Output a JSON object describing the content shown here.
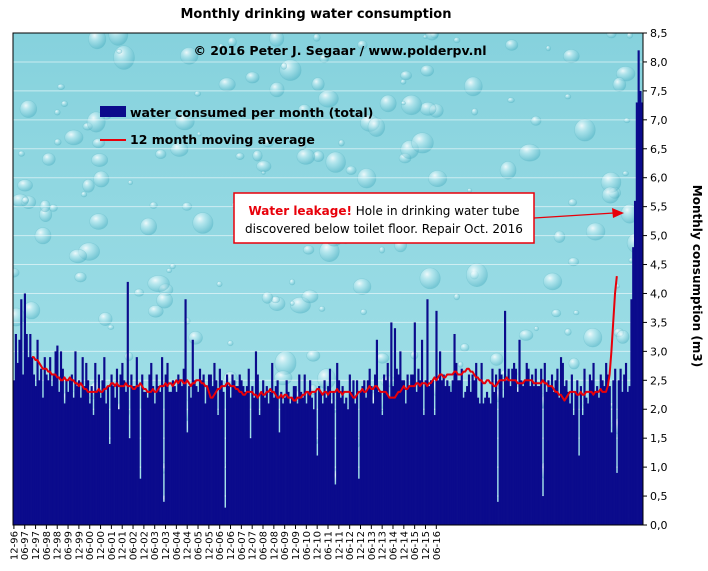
{
  "chart_data": {
    "type": "bar",
    "title": "Monthly drinking  water consumption",
    "subtitle": "© 2016  Peter J. Segaar  /  www.polderpv.nl",
    "ylabel": "Monthly consumption (m3)",
    "xlabel": "",
    "ylim": [
      0,
      8.5
    ],
    "y_ticks": [
      "0,0",
      "0,5",
      "1,0",
      "1,5",
      "2,0",
      "2,5",
      "3,0",
      "3,5",
      "4,0",
      "4,5",
      "5,0",
      "5,5",
      "6,0",
      "6,5",
      "7,0",
      "7,5",
      "8,0",
      "8,5"
    ],
    "x_ticks": [
      "12-96",
      "06-97",
      "12-97",
      "06-98",
      "12-98",
      "06-99",
      "12-99",
      "06-00",
      "12-00",
      "06-01",
      "12-01",
      "06-02",
      "12-02",
      "06-03",
      "12-03",
      "06-04",
      "12-04",
      "06-05",
      "12-05",
      "06-06",
      "12-06",
      "06-07",
      "12-07",
      "06-08",
      "12-08",
      "06-09",
      "12-09",
      "06-10",
      "12-10",
      "06-11",
      "12-11",
      "06-12",
      "12-12",
      "06-13",
      "12-13",
      "06-14",
      "12-14",
      "06-15",
      "12-15",
      "06-16"
    ],
    "grid": true,
    "legend_position": "top-left",
    "colors": {
      "bars": "#0b0b8c",
      "moving_average": "#e8000a",
      "background": "#8fd8e2"
    },
    "series": [
      {
        "name": "water consumed per month (total)",
        "type": "bar",
        "values": [
          2.5,
          3.3,
          2.8,
          3.2,
          3.9,
          2.6,
          4.0,
          3.3,
          2.9,
          3.3,
          2.9,
          2.6,
          2.4,
          3.2,
          2.5,
          2.7,
          2.2,
          2.9,
          2.6,
          2.5,
          2.9,
          2.4,
          2.6,
          3.0,
          3.1,
          2.3,
          3.0,
          2.7,
          2.1,
          2.5,
          2.3,
          2.5,
          2.6,
          2.2,
          3.0,
          2.4,
          2.5,
          2.2,
          2.9,
          2.4,
          2.8,
          2.5,
          2.1,
          2.4,
          1.9,
          2.8,
          2.3,
          2.6,
          2.2,
          2.5,
          2.9,
          2.1,
          2.4,
          1.4,
          2.6,
          2.4,
          2.2,
          2.7,
          2.0,
          2.6,
          2.8,
          2.5,
          2.3,
          4.2,
          1.5,
          2.6,
          2.4,
          2.4,
          2.9,
          2.4,
          0.8,
          2.6,
          2.3,
          2.3,
          2.2,
          2.6,
          2.8,
          2.4,
          2.1,
          2.6,
          2.4,
          2.3,
          2.9,
          0.4,
          2.6,
          2.8,
          2.3,
          2.3,
          2.5,
          2.4,
          2.3,
          2.6,
          2.5,
          2.4,
          2.7,
          3.9,
          1.6,
          2.4,
          2.2,
          3.2,
          2.5,
          2.4,
          2.3,
          2.7,
          2.5,
          2.6,
          2.1,
          2.4,
          2.6,
          2.6,
          2.4,
          2.8,
          2.5,
          1.9,
          2.7,
          2.5,
          2.3,
          0.3,
          2.6,
          2.4,
          2.2,
          2.6,
          2.5,
          2.4,
          2.4,
          2.6,
          2.5,
          2.4,
          2.3,
          2.4,
          2.7,
          1.5,
          2.4,
          2.2,
          3.0,
          2.6,
          1.9,
          2.3,
          2.5,
          2.2,
          2.4,
          2.1,
          2.3,
          2.8,
          2.2,
          2.4,
          2.5,
          1.6,
          2.3,
          2.1,
          2.2,
          2.5,
          2.3,
          2.1,
          2.2,
          2.4,
          2.4,
          2.1,
          2.6,
          2.3,
          2.2,
          2.6,
          2.1,
          2.3,
          2.5,
          2.2,
          2.0,
          2.3,
          1.2,
          2.4,
          2.3,
          2.1,
          2.5,
          2.2,
          2.4,
          2.7,
          2.1,
          2.3,
          0.7,
          2.8,
          2.5,
          2.2,
          2.4,
          2.1,
          2.2,
          2.0,
          2.6,
          2.3,
          2.5,
          2.1,
          2.5,
          0.8,
          2.3,
          2.4,
          2.5,
          2.2,
          2.5,
          2.7,
          2.4,
          2.1,
          2.6,
          3.2,
          2.3,
          2.3,
          1.9,
          2.6,
          2.5,
          2.8,
          2.2,
          3.5,
          2.4,
          3.4,
          2.7,
          2.6,
          3.0,
          2.5,
          2.5,
          2.1,
          2.6,
          2.4,
          2.6,
          2.6,
          3.5,
          2.3,
          2.7,
          2.5,
          3.2,
          1.9,
          2.5,
          3.9,
          2.4,
          2.5,
          2.5,
          1.9,
          3.7,
          2.5,
          3.0,
          2.5,
          2.6,
          2.4,
          2.5,
          2.4,
          2.3,
          2.5,
          3.3,
          2.8,
          2.5,
          2.5,
          2.7,
          2.2,
          2.3,
          2.4,
          2.6,
          2.3,
          2.6,
          2.5,
          2.8,
          2.2,
          2.1,
          2.8,
          2.1,
          2.2,
          2.3,
          2.2,
          2.1,
          2.7,
          2.3,
          2.6,
          0.4,
          2.7,
          2.6,
          2.2,
          3.7,
          2.5,
          2.7,
          2.4,
          2.7,
          2.8,
          2.7,
          2.3,
          3.2,
          2.5,
          2.4,
          2.5,
          2.8,
          2.7,
          2.4,
          2.6,
          2.4,
          2.7,
          2.4,
          2.4,
          2.7,
          0.5,
          2.8,
          2.3,
          2.5,
          2.4,
          2.6,
          2.3,
          2.5,
          2.7,
          2.2,
          2.9,
          2.8,
          2.4,
          2.5,
          2.3,
          2.1,
          2.6,
          1.9,
          2.3,
          2.5,
          1.2,
          2.4,
          1.9,
          2.7,
          2.2,
          2.1,
          2.6,
          2.5,
          2.8,
          2.3,
          2.4,
          2.2,
          2.6,
          2.5,
          2.4,
          2.8,
          2.6,
          2.4,
          1.6,
          2.5,
          2.7,
          0.9,
          2.5,
          2.7,
          2.3,
          2.6,
          2.8,
          2.3,
          2.4,
          3.9,
          4.8,
          5.6,
          7.3,
          8.2,
          7.5,
          7.3
        ]
      },
      {
        "name": "12 month moving average",
        "type": "line",
        "start_index": 10,
        "values": [
          2.9,
          2.9,
          2.85,
          2.85,
          2.8,
          2.75,
          2.7,
          2.7,
          2.7,
          2.65,
          2.65,
          2.6,
          2.6,
          2.6,
          2.55,
          2.55,
          2.5,
          2.5,
          2.55,
          2.5,
          2.5,
          2.55,
          2.5,
          2.5,
          2.45,
          2.45,
          2.4,
          2.45,
          2.4,
          2.35,
          2.35,
          2.3,
          2.3,
          2.3,
          2.3,
          2.3,
          2.3,
          2.35,
          2.3,
          2.3,
          2.35,
          2.35,
          2.4,
          2.4,
          2.45,
          2.45,
          2.4,
          2.45,
          2.4,
          2.4,
          2.4,
          2.4,
          2.45,
          2.4,
          2.4,
          2.4,
          2.35,
          2.35,
          2.4,
          2.4,
          2.45,
          2.4,
          2.35,
          2.35,
          2.3,
          2.3,
          2.3,
          2.35,
          2.3,
          2.3,
          2.35,
          2.4,
          2.4,
          2.4,
          2.45,
          2.4,
          2.45,
          2.45,
          2.4,
          2.45,
          2.5,
          2.45,
          2.5,
          2.5,
          2.45,
          2.45,
          2.5,
          2.45,
          2.4,
          2.45,
          2.45,
          2.5,
          2.5,
          2.5,
          2.45,
          2.45,
          2.4,
          2.4,
          2.3,
          2.2,
          2.2,
          2.25,
          2.3,
          2.35,
          2.35,
          2.4,
          2.4,
          2.4,
          2.45,
          2.45,
          2.4,
          2.4,
          2.4,
          2.35,
          2.35,
          2.3,
          2.3,
          2.25,
          2.25,
          2.3,
          2.3,
          2.3,
          2.3,
          2.25,
          2.25,
          2.2,
          2.25,
          2.3,
          2.25,
          2.25,
          2.3,
          2.3,
          2.35,
          2.3,
          2.3,
          2.25,
          2.2,
          2.2,
          2.25,
          2.2,
          2.25,
          2.25,
          2.2,
          2.2,
          2.2,
          2.15,
          2.15,
          2.2,
          2.2,
          2.2,
          2.25,
          2.25,
          2.3,
          2.3,
          2.25,
          2.3,
          2.3,
          2.3,
          2.35,
          2.35,
          2.3,
          2.25,
          2.3,
          2.3,
          2.25,
          2.3,
          2.3,
          2.3,
          2.3,
          2.35,
          2.3,
          2.3,
          2.25,
          2.3,
          2.3,
          2.3,
          2.3,
          2.25,
          2.2,
          2.2,
          2.25,
          2.3,
          2.3,
          2.35,
          2.3,
          2.3,
          2.35,
          2.4,
          2.35,
          2.35,
          2.4,
          2.4,
          2.35,
          2.3,
          2.3,
          2.3,
          2.3,
          2.25,
          2.2,
          2.2,
          2.2,
          2.2,
          2.25,
          2.3,
          2.3,
          2.35,
          2.4,
          2.35,
          2.35,
          2.4,
          2.4,
          2.4,
          2.4,
          2.45,
          2.45,
          2.4,
          2.45,
          2.45,
          2.45,
          2.4,
          2.45,
          2.45,
          2.5,
          2.55,
          2.5,
          2.55,
          2.6,
          2.6,
          2.55,
          2.55,
          2.6,
          2.6,
          2.6,
          2.6,
          2.65,
          2.65,
          2.6,
          2.6,
          2.6,
          2.65,
          2.65,
          2.7,
          2.7,
          2.65,
          2.65,
          2.6,
          2.55,
          2.55,
          2.5,
          2.5,
          2.45,
          2.45,
          2.5,
          2.5,
          2.45,
          2.45,
          2.4,
          2.4,
          2.45,
          2.5,
          2.5,
          2.5,
          2.5,
          2.55,
          2.5,
          2.5,
          2.5,
          2.5,
          2.5,
          2.45,
          2.45,
          2.45,
          2.45,
          2.5,
          2.5,
          2.5,
          2.5,
          2.5,
          2.45,
          2.45,
          2.45,
          2.45,
          2.45,
          2.5,
          2.45,
          2.45,
          2.4,
          2.4,
          2.4,
          2.35,
          2.3,
          2.3,
          2.25,
          2.25,
          2.2,
          2.15,
          2.2,
          2.25,
          2.3,
          2.3,
          2.3,
          2.3,
          2.25,
          2.25,
          2.3,
          2.25,
          2.25,
          2.3,
          2.3,
          2.3,
          2.3,
          2.25,
          2.3,
          2.3,
          2.3,
          2.35,
          2.3,
          2.3,
          2.3,
          2.4,
          2.6,
          3.0,
          3.5,
          4.0,
          4.3
        ]
      }
    ],
    "annotation": {
      "highlight": "Water leakage!",
      "line1_rest": " Hole in drinking water tube",
      "line2": "discovered below toilet floor. Repair Oct. 2016"
    }
  }
}
